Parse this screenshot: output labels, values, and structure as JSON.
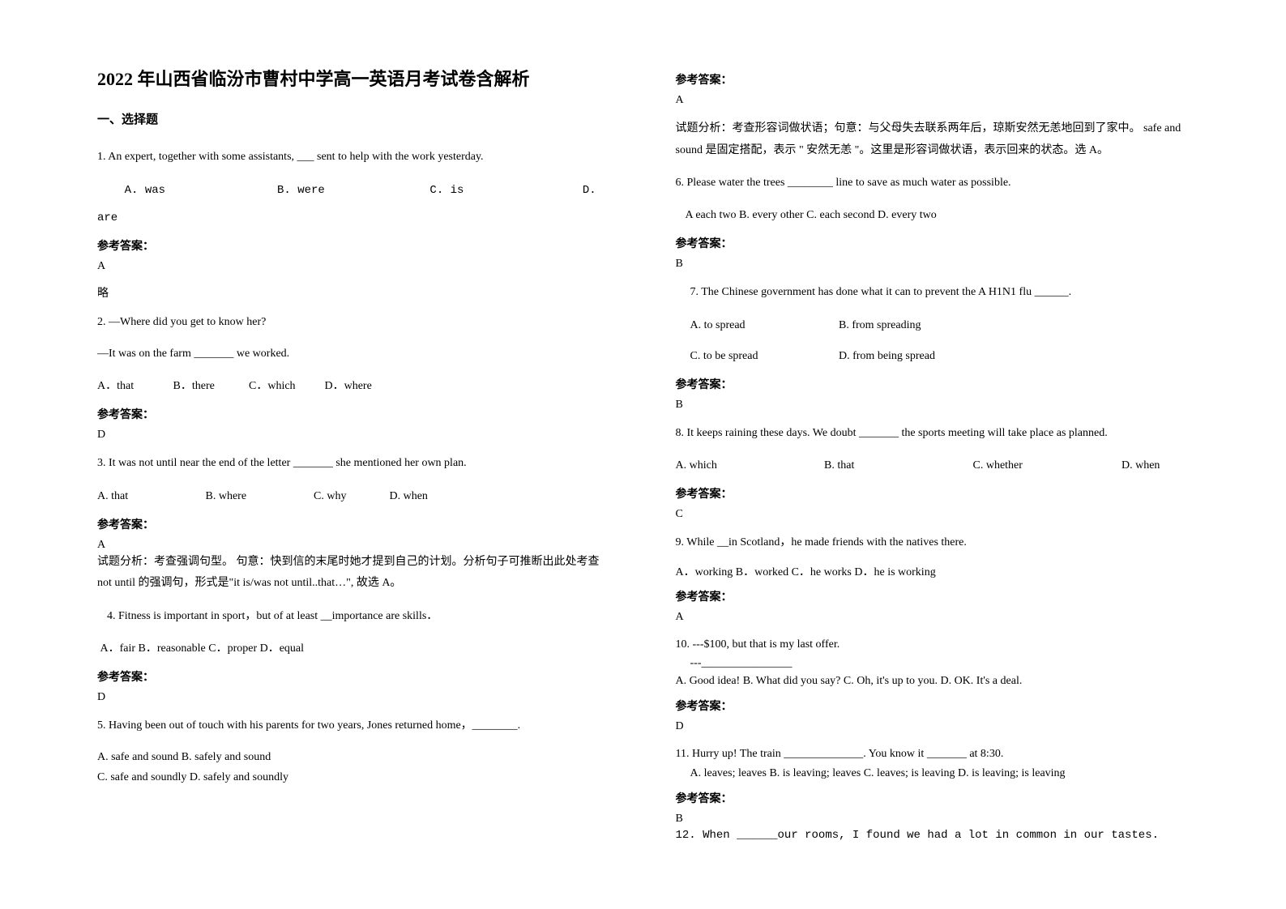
{
  "doc": {
    "title": "2022 年山西省临汾市曹村中学高一英语月考试卷含解析",
    "section1": "一、选择题",
    "answer_label": "参考答案：",
    "q1": {
      "text": "1. An expert, together with some assistants, ___ sent to help with the work yesterday.",
      "optA": "A. was",
      "optB": "B. were",
      "optC": "C. is",
      "optD": "D.",
      "optD2": "are",
      "ans": "A",
      "note": "略"
    },
    "q2": {
      "line1": "2. —Where did you get to know her?",
      "line2": "—It was on the farm _______ we worked.",
      "optA": "A．that",
      "optB": "B．there",
      "optC": "C．which",
      "optD": "D．where",
      "ans": "D"
    },
    "q3": {
      "text": "3. It was not until near the end of the letter _______ she mentioned her own plan.",
      "optA": "A. that",
      "optB": "B. where",
      "optC": "C. why",
      "optD": "D. when",
      "ans": "A",
      "analysis": "试题分析：考查强调句型。 句意：快到信的末尾时她才提到自己的计划。分析句子可推断出此处考查 not until 的强调句，形式是\"it is/was not until..that…\", 故选 A。"
    },
    "q4": {
      "text": "4. Fitness is important in sport，but of at least __importance are skills．",
      "opts": "A．fair   B．reasonable   C．proper   D．equal",
      "ans": "D"
    },
    "q5": {
      "text": "5. Having been out of touch with his parents for two years, Jones returned home，________.",
      "optAB": "A. safe and sound    B. safely and sound",
      "optCD": "C. safe and soundly    D. safely and soundly",
      "ans": "A",
      "analysis": "试题分析：考查形容词做状语；句意：与父母失去联系两年后，琼斯安然无恙地回到了家中。 safe and sound 是固定搭配，表示 \" 安然无恙 \"。这里是形容词做状语，表示回来的状态。选 A。"
    },
    "q6": {
      "text": "6. Please water the trees ________ line to save as much water as possible.",
      "opts": "A each two   B. every other   C. each second   D. every two",
      "ans": "B"
    },
    "q7": {
      "text": "7. The Chinese government has done what it can to prevent the A H1N1 flu ______.",
      "optA": "A. to spread",
      "optB": "B. from spreading",
      "optC": "C. to be spread",
      "optD": "D. from being spread",
      "ans": "B"
    },
    "q8": {
      "text": "8. It keeps raining these days. We doubt _______ the sports meeting will take place as planned.",
      "optA": "A. which",
      "optB": "B. that",
      "optC": "C. whether",
      "optD": "D. when",
      "ans": "C"
    },
    "q9": {
      "text": "9. While __in Scotland，he made friends with the natives there.",
      "opts": "A．working       B．worked        C．he works    D．he is working",
      "ans": "A"
    },
    "q10": {
      "line1": "10. ---$100, but that is my last offer.",
      "line2": "---________________",
      "opts": "A. Good idea!      B. What did you say?    C. Oh, it's up to you.    D. OK. It's a deal.",
      "ans": "D"
    },
    "q11": {
      "text": "11. Hurry up! The train ______________. You know it _______ at 8:30.",
      "opts": "A. leaves; leaves  B. is leaving; leaves  C. leaves; is leaving  D. is leaving; is leaving",
      "ans": "B"
    },
    "q12": {
      "text": "12. When ______our rooms, I found we had a lot in common in our tastes."
    }
  }
}
